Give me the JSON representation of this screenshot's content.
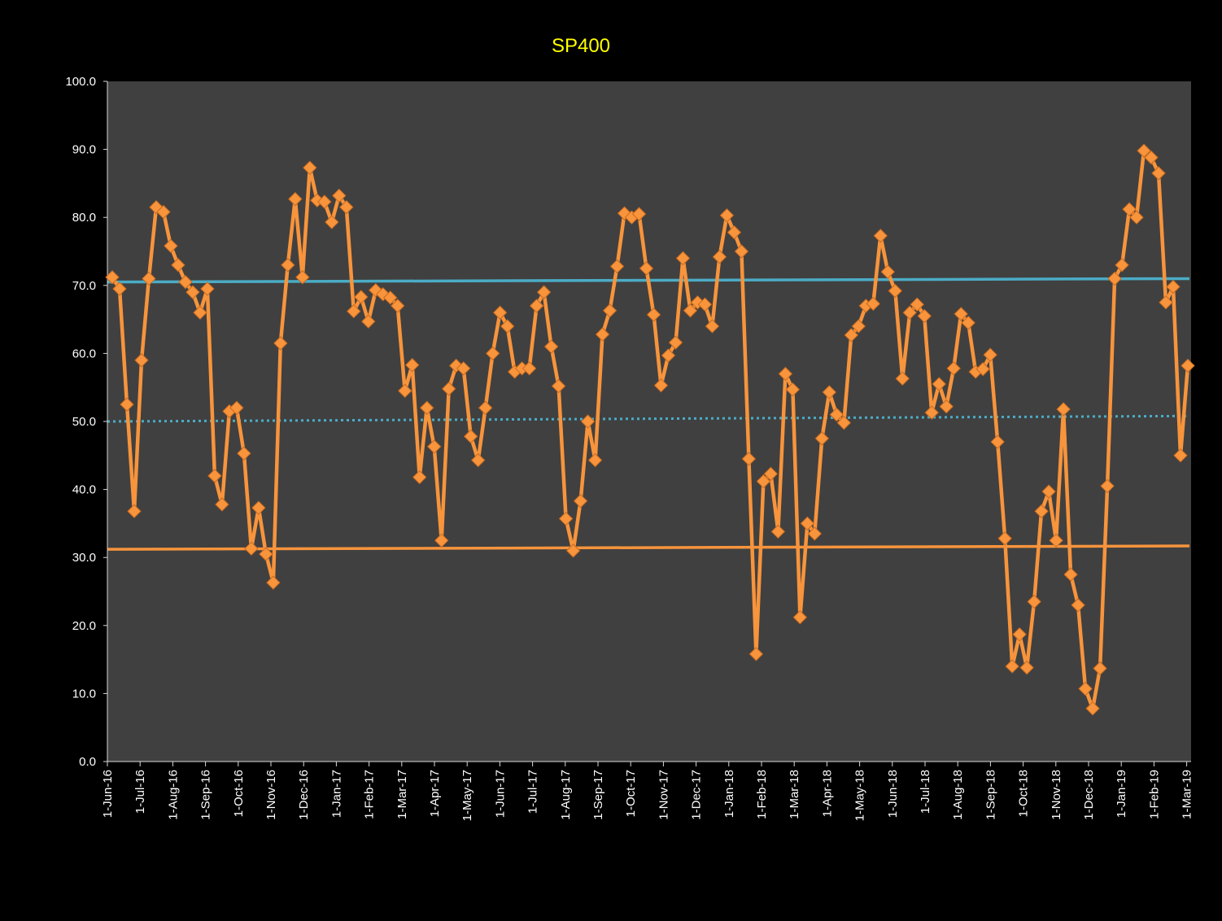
{
  "chart_data": {
    "type": "line",
    "title": "SP400",
    "xlabel": "",
    "ylabel": "",
    "ylim": [
      0,
      100
    ],
    "yticks": [
      "0.0",
      "10.0",
      "20.0",
      "30.0",
      "40.0",
      "50.0",
      "60.0",
      "70.0",
      "80.0",
      "90.0",
      "100.0"
    ],
    "xticks": [
      "1-Jun-16",
      "1-Jul-16",
      "1-Aug-16",
      "1-Sep-16",
      "1-Oct-16",
      "1-Nov-16",
      "1-Dec-16",
      "1-Jan-17",
      "1-Feb-17",
      "1-Mar-17",
      "1-Apr-17",
      "1-May-17",
      "1-Jun-17",
      "1-Jul-17",
      "1-Aug-17",
      "1-Sep-17",
      "1-Oct-17",
      "1-Nov-17",
      "1-Dec-17",
      "1-Jan-18",
      "1-Feb-18",
      "1-Mar-18",
      "1-Apr-18",
      "1-May-18",
      "1-Jun-18",
      "1-Jul-18",
      "1-Aug-18",
      "1-Sep-18",
      "1-Oct-18",
      "1-Nov-18",
      "1-Dec-18",
      "1-Jan-19",
      "1-Feb-19",
      "1-Mar-19"
    ],
    "colors": {
      "background": "#000000",
      "plot_area": "#404040",
      "series": "#f7943c",
      "upper_trend": "#4bacc6",
      "mid_trend": "#4bacc6",
      "lower_trend": "#f7943c",
      "title": "#ffff00",
      "axis_text": "#ffffff"
    },
    "grid": false,
    "legend": "none",
    "series": [
      {
        "marker": "diamond",
        "values": [
          71.2,
          69.5,
          52.5,
          36.8,
          59.0,
          71.0,
          81.5,
          80.8,
          75.8,
          73.0,
          70.5,
          69.0,
          66.0,
          69.5,
          42.0,
          37.8,
          51.5,
          52.0,
          45.3,
          31.3,
          37.3,
          30.5,
          26.3,
          61.5,
          73.0,
          82.7,
          71.2,
          87.3,
          82.5,
          82.3,
          79.3,
          83.2,
          81.5,
          66.2,
          68.3,
          64.7,
          69.3,
          68.7,
          68.2,
          67.0,
          54.5,
          58.3,
          41.8,
          52.0,
          46.3,
          32.5,
          54.8,
          58.2,
          57.8,
          47.8,
          44.3,
          52.0,
          60.0,
          66.0,
          64.0,
          57.3,
          57.8,
          57.8,
          67.0,
          69.0,
          61.0,
          55.2,
          35.7,
          31.0,
          38.3,
          50.0,
          44.3,
          62.8,
          66.3,
          72.8,
          80.6,
          80.0,
          80.5,
          72.5,
          65.7,
          55.3,
          59.7,
          61.6,
          74.0,
          66.3,
          67.5,
          67.2,
          64.0,
          74.2,
          80.3,
          77.8,
          75.0,
          44.5,
          15.8,
          41.2,
          42.3,
          33.8,
          57.0,
          54.7,
          21.2,
          35.0,
          33.5,
          47.5,
          54.3,
          51.0,
          49.8,
          62.7,
          64.0,
          67.0,
          67.3,
          77.3,
          72.0,
          69.2,
          56.3,
          66.0,
          67.2,
          65.5,
          51.3,
          55.5,
          52.2,
          57.8,
          65.8,
          64.5,
          57.3,
          57.7,
          59.8,
          47.0,
          32.8,
          14.0,
          18.7,
          13.8,
          23.5,
          36.8,
          39.7,
          32.5,
          51.8,
          27.5,
          23.0,
          10.7,
          7.8,
          13.7,
          40.5,
          71.0,
          73.0,
          81.2,
          80.0,
          89.8,
          88.8,
          86.5,
          67.5,
          69.8,
          45.0,
          58.2
        ]
      }
    ],
    "trendlines": [
      {
        "style": "solid",
        "start": 70.5,
        "end": 71.0
      },
      {
        "style": "dotted",
        "start": 50.0,
        "end": 50.8
      },
      {
        "style": "solid",
        "start": 31.2,
        "end": 31.7
      }
    ]
  }
}
